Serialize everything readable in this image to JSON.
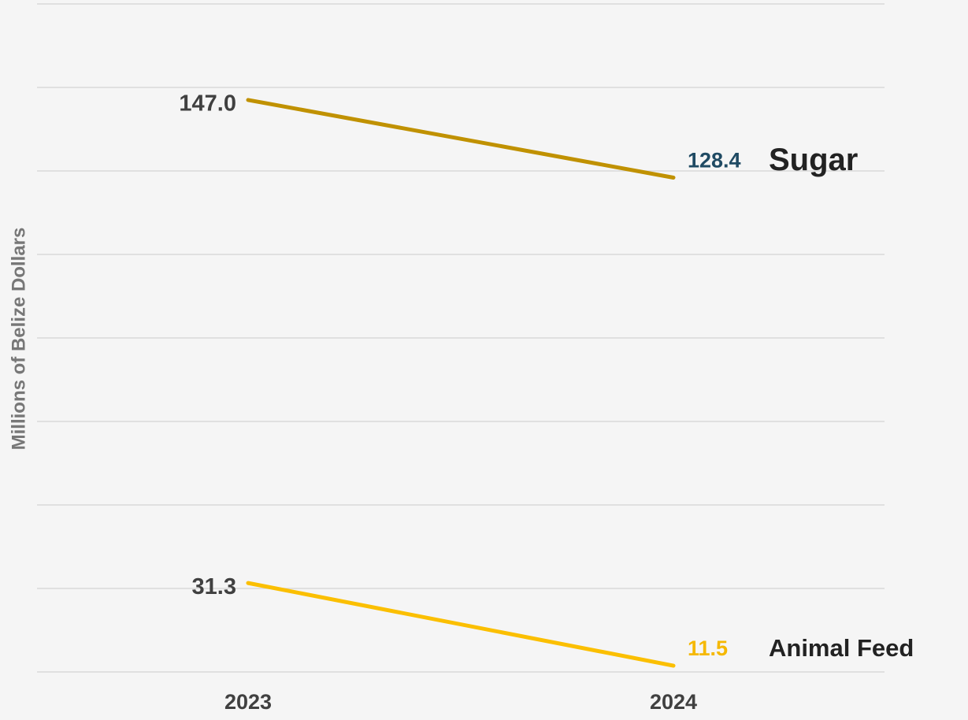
{
  "chart_data": {
    "type": "line",
    "y_label": "Millions of Belize Dollars",
    "categories": [
      "2023",
      "2024"
    ],
    "series": [
      {
        "name": "Sugar",
        "color": "#c09100",
        "label_colors": [
          "#404040",
          "#1f4a63"
        ],
        "values": [
          147.0,
          128.4
        ],
        "value_labels": [
          "147.0",
          "128.4"
        ]
      },
      {
        "name": "Animal Feed",
        "color": "#fbbf00",
        "label_colors": [
          "#404040",
          "#f5b800"
        ],
        "values": [
          31.3,
          11.5
        ],
        "value_labels": [
          "31.3",
          "11.5"
        ]
      }
    ],
    "ylim": [
      10,
      170
    ],
    "yticks": [
      10,
      30,
      50,
      70,
      90,
      110,
      130,
      150,
      170
    ],
    "grid": true
  }
}
